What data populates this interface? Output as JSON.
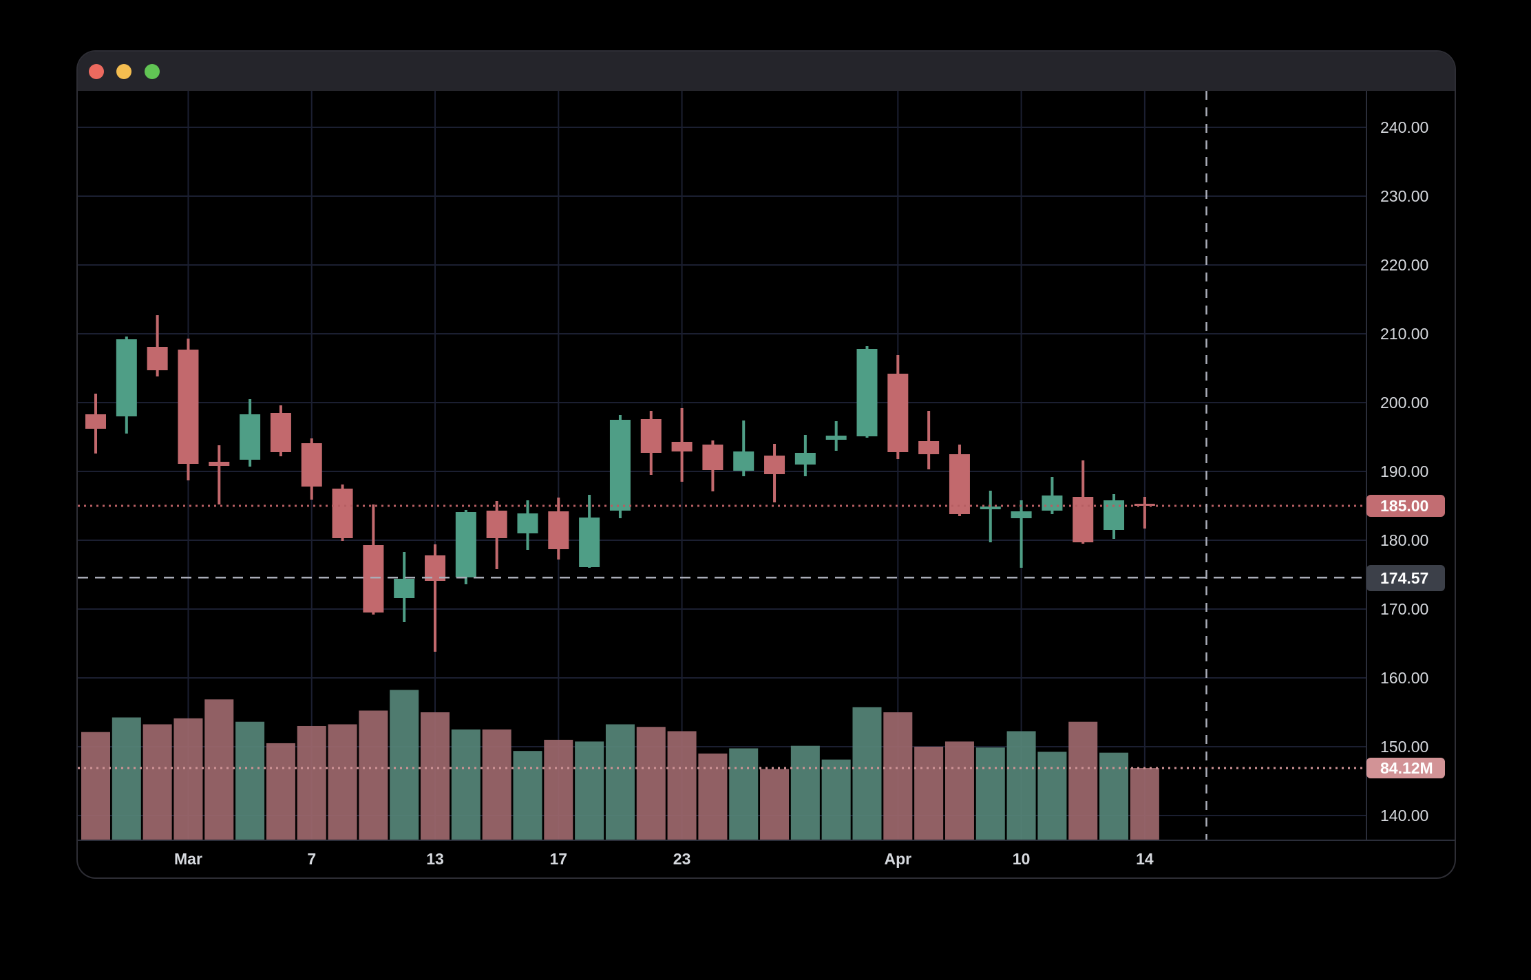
{
  "window": {
    "titlebar_color": "#25252b",
    "traffic_lights": {
      "close_color": "#ed6a5f",
      "minimize_color": "#f4bd50",
      "zoom_color": "#61c454"
    }
  },
  "chart": {
    "colors": {
      "background": "#000000",
      "grid": "#1b1f31",
      "axis_border": "#2b2e3a",
      "axis_text": "#d6d9de",
      "candle_up": "#4f9e86",
      "candle_down": "#c2696d",
      "volume_up": "#568678",
      "volume_down": "#9d686c",
      "crosshair": "#aaadb8",
      "last_price_line": "#b65e62",
      "last_price_badge_bg": "#c26d72",
      "crosshair_badge_bg": "#3c4049",
      "volume_line": "#cf9396",
      "volume_badge_bg": "#d29396"
    },
    "badges": {
      "last_price": "185.00",
      "crosshair_price": "174.57",
      "volume": "84.12M"
    }
  },
  "chart_data": {
    "type": "candlestick",
    "subtype": "daily OHLC with volume underlay",
    "grid": true,
    "legend_position": "none",
    "price_axis_ticks": [
      240,
      230,
      220,
      210,
      200,
      190,
      180,
      170,
      160,
      150,
      140
    ],
    "price_axis_tick_labels": [
      "240.00",
      "230.00",
      "220.00",
      "210.00",
      "200.00",
      "190.00",
      "180.00",
      "170.00",
      "160.00",
      "150.00",
      "140.00"
    ],
    "time_axis_ticks": [
      {
        "label": "Mar",
        "candle_index": 3
      },
      {
        "label": "7",
        "candle_index": 7
      },
      {
        "label": "13",
        "candle_index": 11
      },
      {
        "label": "17",
        "candle_index": 15
      },
      {
        "label": "23",
        "candle_index": 19
      },
      {
        "label": "Apr",
        "candle_index": 26
      },
      {
        "label": "10",
        "candle_index": 30
      },
      {
        "label": "14",
        "candle_index": 34
      }
    ],
    "ylim_price": [
      136.4,
      245.3
    ],
    "volume_unit": "M",
    "last_price_value": 185.0,
    "crosshair_price_value": 174.57,
    "crosshair_slot_index": 36,
    "last_volume_value": 84.12,
    "ohlcv": [
      {
        "o": 198.3,
        "h": 201.3,
        "l": 192.6,
        "c": 196.2,
        "v": 126
      },
      {
        "o": 198.0,
        "h": 209.6,
        "l": 195.5,
        "c": 209.2,
        "v": 143
      },
      {
        "o": 208.1,
        "h": 212.7,
        "l": 203.8,
        "c": 204.7,
        "v": 135
      },
      {
        "o": 207.7,
        "h": 209.3,
        "l": 188.7,
        "c": 191.1,
        "v": 142
      },
      {
        "o": 191.4,
        "h": 193.8,
        "l": 185.2,
        "c": 190.8,
        "v": 164
      },
      {
        "o": 191.7,
        "h": 200.5,
        "l": 190.7,
        "c": 198.3,
        "v": 138
      },
      {
        "o": 198.5,
        "h": 199.6,
        "l": 192.2,
        "c": 192.8,
        "v": 113
      },
      {
        "o": 194.1,
        "h": 194.8,
        "l": 185.9,
        "c": 187.8,
        "v": 133
      },
      {
        "o": 187.5,
        "h": 188.1,
        "l": 179.9,
        "c": 180.3,
        "v": 135
      },
      {
        "o": 179.3,
        "h": 185.2,
        "l": 169.2,
        "c": 169.5,
        "v": 151
      },
      {
        "o": 171.6,
        "h": 178.3,
        "l": 168.1,
        "c": 174.4,
        "v": 175
      },
      {
        "o": 177.8,
        "h": 179.4,
        "l": 163.8,
        "c": 174.1,
        "v": 149
      },
      {
        "o": 174.6,
        "h": 184.4,
        "l": 173.6,
        "c": 184.1,
        "v": 129
      },
      {
        "o": 184.3,
        "h": 185.7,
        "l": 175.8,
        "c": 180.3,
        "v": 129
      },
      {
        "o": 181.0,
        "h": 185.8,
        "l": 178.6,
        "c": 183.9,
        "v": 104
      },
      {
        "o": 184.2,
        "h": 186.2,
        "l": 177.2,
        "c": 178.7,
        "v": 117
      },
      {
        "o": 176.1,
        "h": 186.6,
        "l": 176.0,
        "c": 183.3,
        "v": 115
      },
      {
        "o": 184.3,
        "h": 198.2,
        "l": 183.2,
        "c": 197.5,
        "v": 135
      },
      {
        "o": 197.6,
        "h": 198.8,
        "l": 189.5,
        "c": 192.7,
        "v": 132
      },
      {
        "o": 194.3,
        "h": 199.2,
        "l": 188.5,
        "c": 192.9,
        "v": 127
      },
      {
        "o": 193.9,
        "h": 194.5,
        "l": 187.1,
        "c": 190.2,
        "v": 101
      },
      {
        "o": 190.1,
        "h": 197.4,
        "l": 189.3,
        "c": 192.9,
        "v": 107
      },
      {
        "o": 192.3,
        "h": 194.0,
        "l": 185.5,
        "c": 189.6,
        "v": 83
      },
      {
        "o": 191.0,
        "h": 195.3,
        "l": 189.3,
        "c": 192.7,
        "v": 110
      },
      {
        "o": 194.6,
        "h": 197.3,
        "l": 193.0,
        "c": 195.2,
        "v": 94
      },
      {
        "o": 195.1,
        "h": 208.2,
        "l": 194.9,
        "c": 207.8,
        "v": 155
      },
      {
        "o": 204.2,
        "h": 206.9,
        "l": 191.8,
        "c": 192.8,
        "v": 149
      },
      {
        "o": 194.4,
        "h": 198.8,
        "l": 190.3,
        "c": 192.5,
        "v": 109
      },
      {
        "o": 192.5,
        "h": 193.9,
        "l": 183.5,
        "c": 183.8,
        "v": 115
      },
      {
        "o": 184.5,
        "h": 187.2,
        "l": 179.7,
        "c": 184.9,
        "v": 108
      },
      {
        "o": 183.2,
        "h": 185.8,
        "l": 176.0,
        "c": 184.2,
        "v": 127
      },
      {
        "o": 184.3,
        "h": 189.2,
        "l": 183.8,
        "c": 186.5,
        "v": 103
      },
      {
        "o": 186.3,
        "h": 191.6,
        "l": 179.5,
        "c": 179.7,
        "v": 138
      },
      {
        "o": 181.5,
        "h": 186.7,
        "l": 180.2,
        "c": 185.8,
        "v": 102
      },
      {
        "o": 185.3,
        "h": 186.3,
        "l": 181.7,
        "c": 185.0,
        "v": 84.12
      }
    ]
  }
}
